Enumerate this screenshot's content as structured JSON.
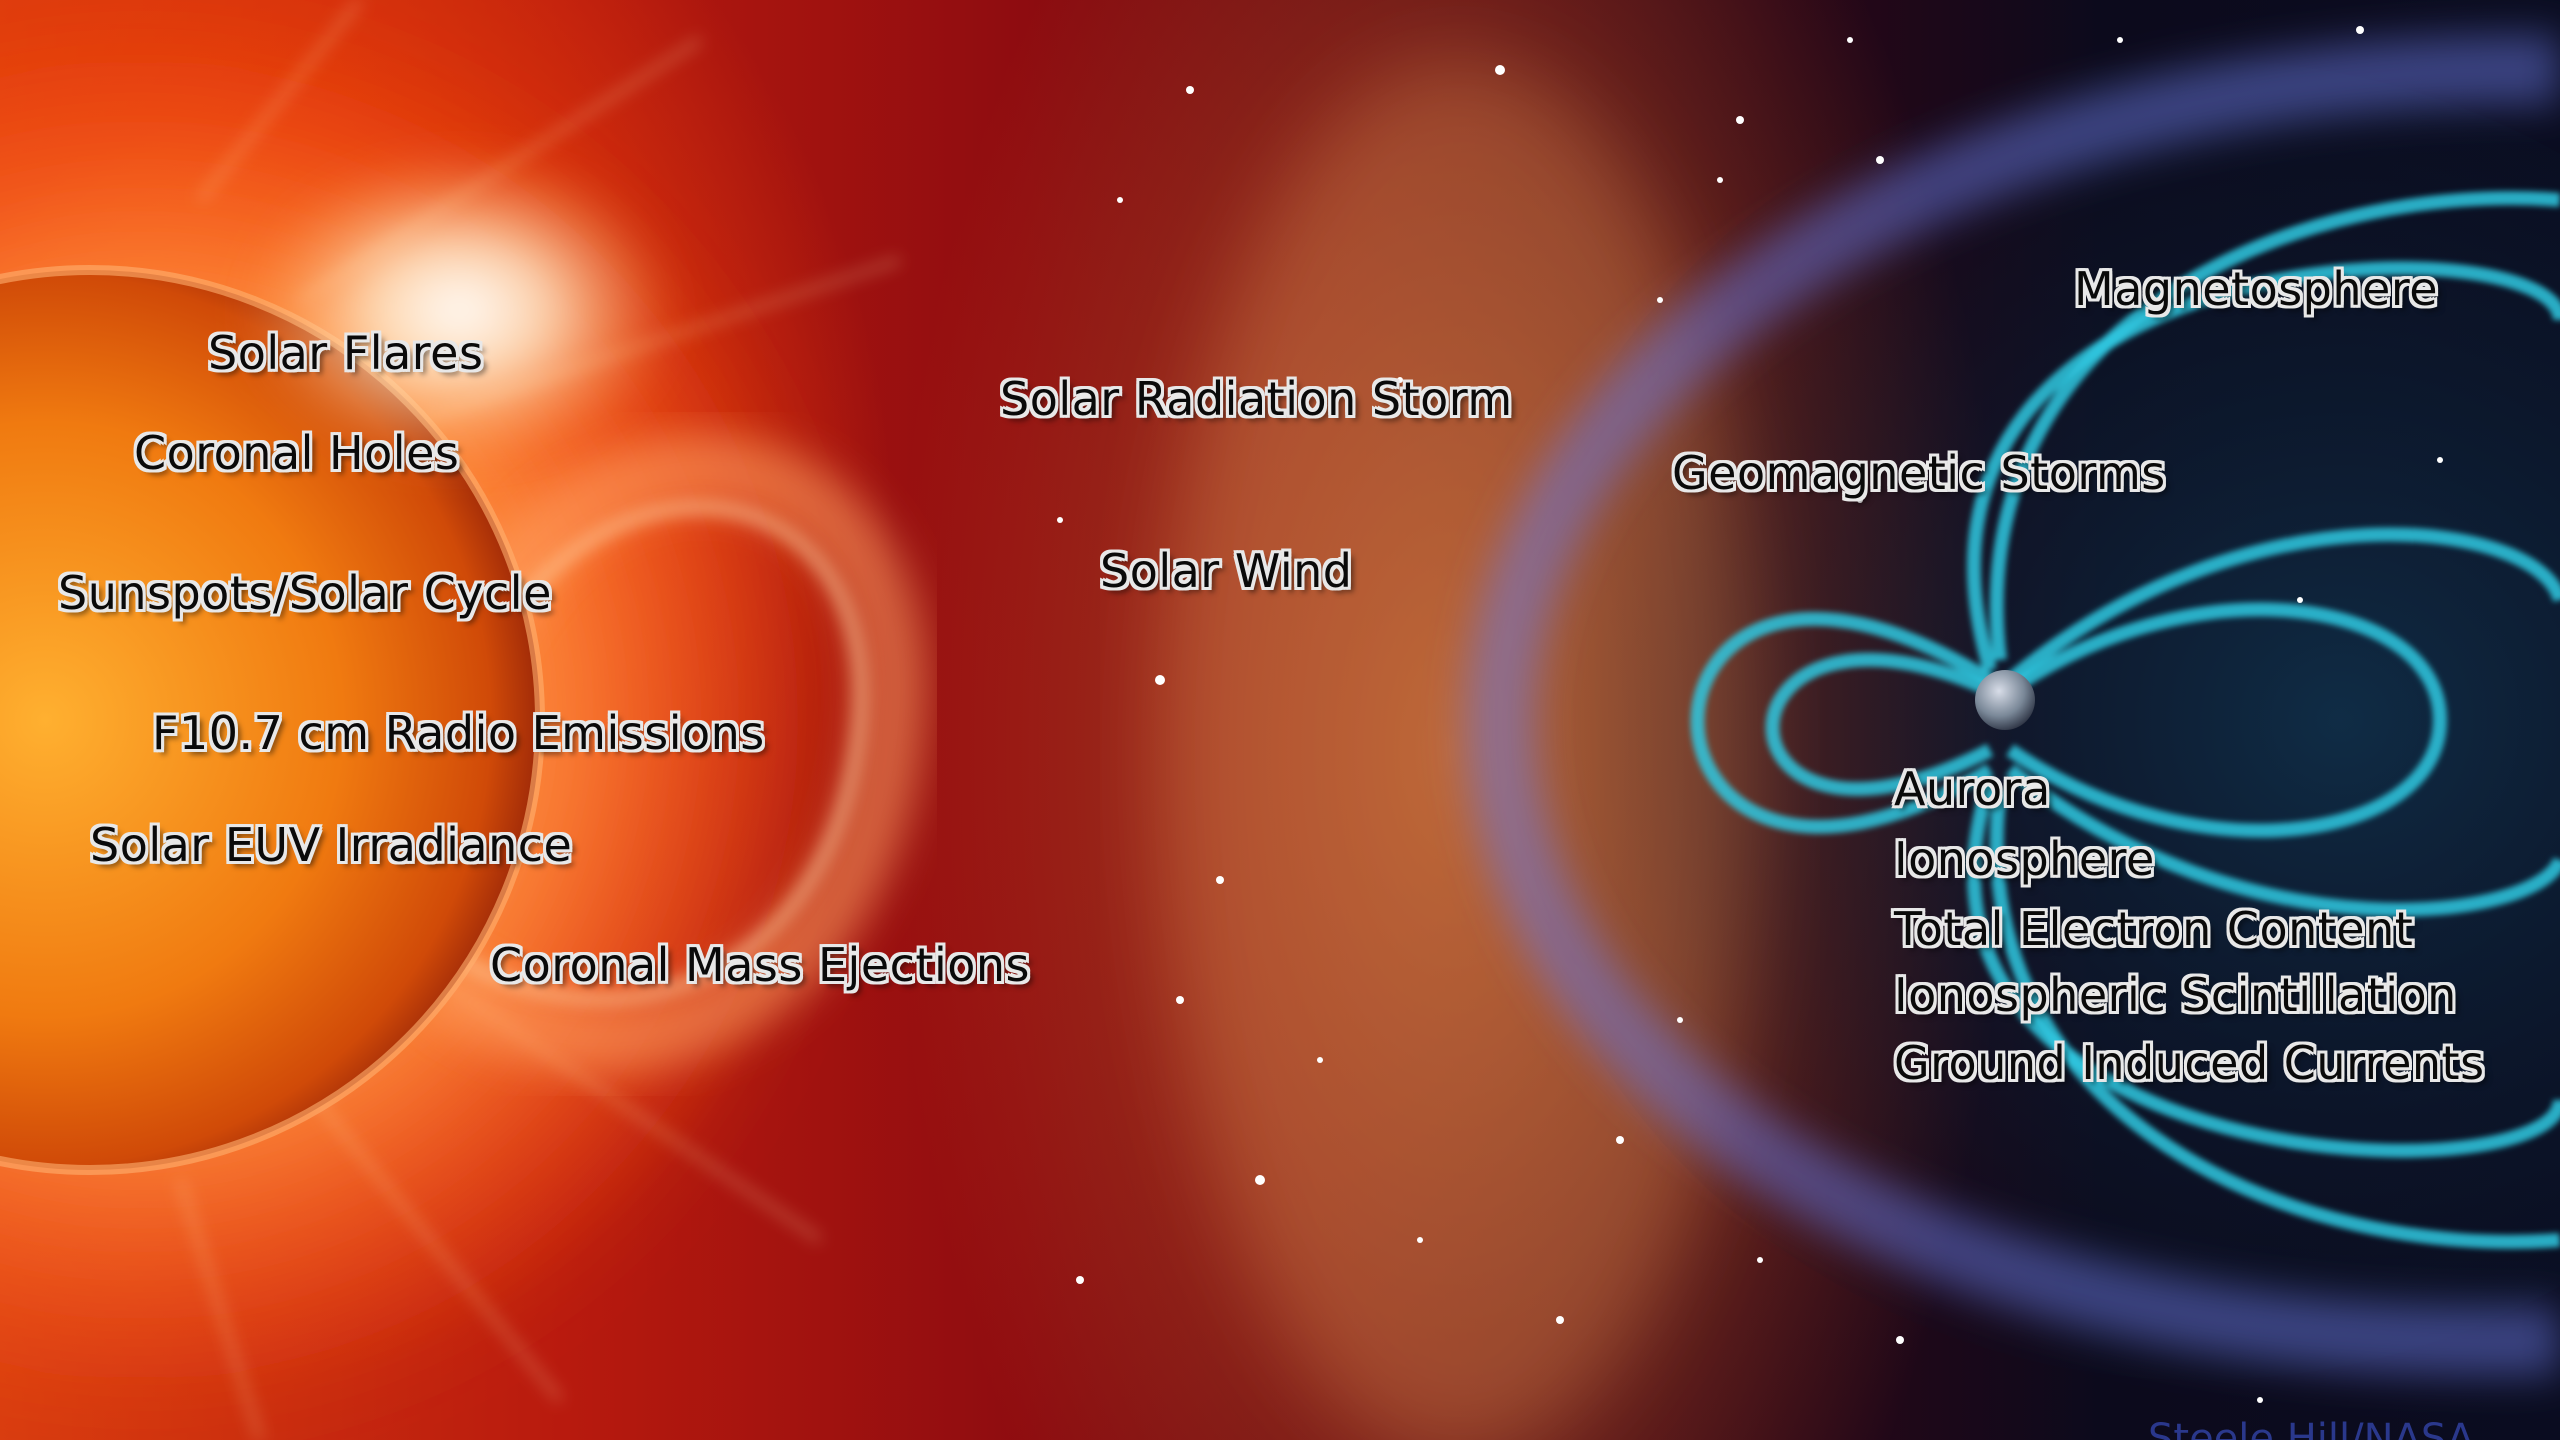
{
  "sun_labels": {
    "solar_flares": "Solar Flares",
    "coronal_holes": "Coronal Holes",
    "sunspots": "Sunspots/Solar Cycle",
    "radio": "F10.7 cm Radio Emissions",
    "euv": "Solar EUV Irradiance",
    "cme": "Coronal Mass Ejections"
  },
  "space_labels": {
    "radiation_storm": "Solar Radiation Storm",
    "solar_wind": "Solar Wind"
  },
  "earth_labels": {
    "magnetosphere": "Magnetosphere",
    "geomagnetic": "Geomagnetic Storms",
    "aurora": "Aurora",
    "ionosphere": "Ionosphere",
    "tec": "Total Electron Content",
    "scintillation": "Ionospheric Scintillation",
    "gic": "Ground Induced Currents"
  },
  "credit": "Steele Hill/NASA",
  "colors": {
    "sun": "#ff8a10",
    "magnetosphere": "#30c8e0",
    "bow_shock": "#6a78e0",
    "label_fill": "#e8e8e8"
  }
}
